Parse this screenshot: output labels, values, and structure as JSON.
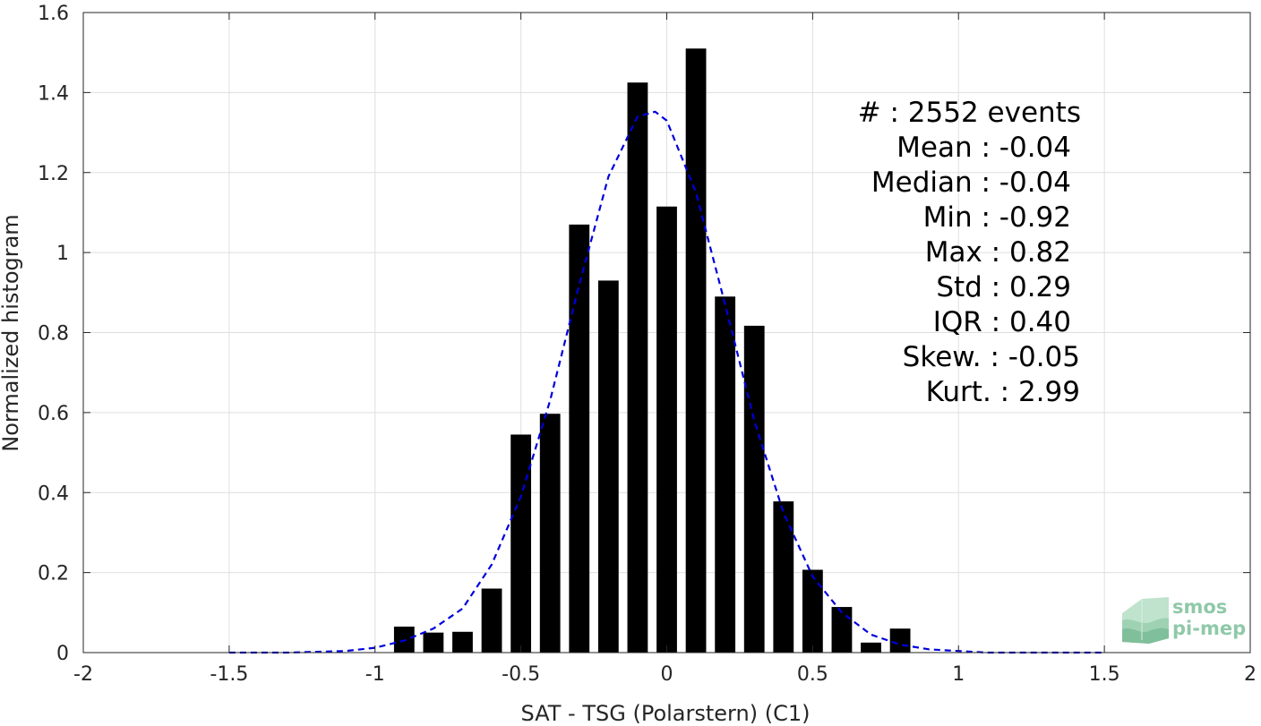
{
  "chart_data": {
    "type": "bar",
    "xlabel": "SAT - TSG (Polarstern) (C1)",
    "ylabel": "Normalized histogram",
    "xlim": [
      -2,
      2
    ],
    "ylim": [
      0,
      1.6
    ],
    "xticks": [
      -2,
      -1.5,
      -1,
      -0.5,
      0,
      0.5,
      1,
      1.5,
      2
    ],
    "xtick_labels": [
      "-2",
      "-1.5",
      "-1",
      "-0.5",
      "0",
      "0.5",
      "1",
      "1.5",
      "2"
    ],
    "yticks": [
      0,
      0.2,
      0.4,
      0.6,
      0.8,
      1,
      1.2,
      1.4,
      1.6
    ],
    "ytick_labels": [
      "0",
      "0.2",
      "0.4",
      "0.6",
      "0.8",
      "1",
      "1.2",
      "1.4",
      "1.6"
    ],
    "grid": true,
    "bar_width": 0.07,
    "bar_color": "#000000",
    "bars": {
      "x": [
        -0.9,
        -0.8,
        -0.7,
        -0.6,
        -0.5,
        -0.4,
        -0.3,
        -0.2,
        -0.1,
        0.0,
        0.1,
        0.2,
        0.3,
        0.4,
        0.5,
        0.6,
        0.7,
        0.8
      ],
      "values": [
        0.065,
        0.05,
        0.052,
        0.16,
        0.545,
        0.597,
        1.07,
        0.93,
        1.425,
        1.115,
        1.51,
        0.89,
        0.817,
        0.378,
        0.207,
        0.114,
        0.025,
        0.06
      ]
    },
    "fit_curve": {
      "style": "dashed",
      "color": "#0000dd",
      "x": [
        -1.5,
        -1.4,
        -1.3,
        -1.2,
        -1.1,
        -1.0,
        -0.9,
        -0.8,
        -0.7,
        -0.6,
        -0.5,
        -0.4,
        -0.3,
        -0.2,
        -0.1,
        -0.04,
        0.0,
        0.1,
        0.2,
        0.3,
        0.4,
        0.5,
        0.6,
        0.7,
        0.8,
        0.9,
        1.0,
        1.1,
        1.2,
        1.3,
        1.4,
        1.5
      ],
      "y": [
        0.0,
        0.0,
        0.0,
        0.002,
        0.004,
        0.012,
        0.03,
        0.06,
        0.11,
        0.22,
        0.39,
        0.63,
        0.92,
        1.19,
        1.34,
        1.352,
        1.33,
        1.15,
        0.87,
        0.58,
        0.35,
        0.19,
        0.1,
        0.045,
        0.02,
        0.008,
        0.004,
        0.0,
        0.0,
        0.0,
        0.0,
        0.0
      ]
    },
    "annotations": [
      "#  : 2552 events",
      "Mean : -0.04",
      "Median : -0.04",
      "Min : -0.92",
      "Max : 0.82",
      "Std : 0.29",
      "IQR : 0.40",
      "Skew. : -0.05",
      "Kurt. : 2.99"
    ]
  },
  "logo": {
    "line1": "smos",
    "line2": "pi-mep",
    "color": "#8fc9a8"
  }
}
